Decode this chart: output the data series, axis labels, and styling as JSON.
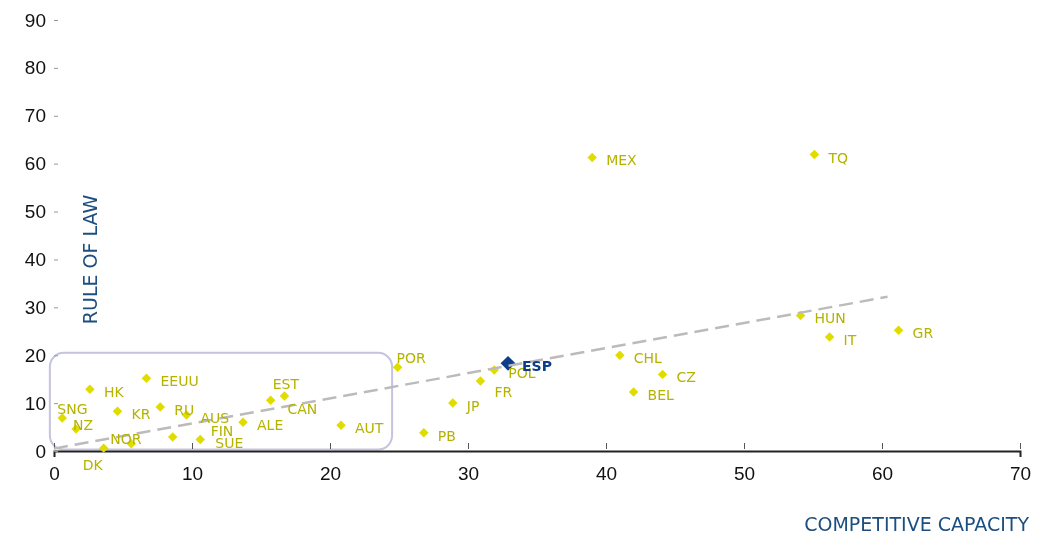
{
  "chart_data": {
    "type": "scatter",
    "xlabel": "COMPETITIVE CAPACITY",
    "ylabel": "RULE OF LAW",
    "xlim": [
      0,
      70
    ],
    "xticks": [
      0,
      10,
      20,
      30,
      40,
      50,
      60,
      70
    ],
    "ylim": [
      0,
      90
    ],
    "yticks": [
      0,
      10,
      20,
      30,
      40,
      50,
      60,
      70,
      80,
      90
    ],
    "grid": false,
    "series": [
      {
        "marker": "diamond",
        "color": "#e0dc00",
        "x": [
          0.6,
          1.6,
          3.6,
          2.6,
          4.6,
          6.7,
          5.6,
          7.7,
          9.6,
          8.6,
          10.6,
          13.7,
          15.7,
          16.7,
          20.8,
          24.9,
          26.8,
          28.9,
          30.9,
          31.9,
          41.0,
          42.0,
          44.1,
          39.0,
          55.1,
          54.1,
          56.2,
          61.2
        ],
        "values": [
          6.9,
          4.6,
          0.6,
          12.9,
          8.3,
          15.2,
          1.5,
          9.2,
          7.5,
          2.9,
          2.4,
          6.0,
          10.6,
          11.5,
          5.4,
          17.5,
          3.8,
          10.0,
          14.6,
          16.9,
          20.0,
          12.3,
          16.0,
          61.3,
          61.9,
          28.3,
          23.8,
          25.2
        ]
      },
      {
        "marker": "diamond",
        "color": "#0c3c8c",
        "x": [
          32.9
        ],
        "values": [
          18.3
        ]
      },
      {
        "type": "line",
        "marker": "none",
        "color": "#bbbbbb",
        "line_style": "dashed",
        "x": [
          0,
          60.4
        ],
        "values": [
          0.5,
          32.2
        ]
      }
    ],
    "annotations": [
      {
        "text": "SNG",
        "x": 0.6,
        "y": 6.9
      },
      {
        "text": "NZ",
        "x": 1.6,
        "y": 4.6
      },
      {
        "text": "DK",
        "x": 3.6,
        "y": 0.6
      },
      {
        "text": "HK",
        "x": 2.6,
        "y": 12.9
      },
      {
        "text": "KR",
        "x": 4.6,
        "y": 8.3
      },
      {
        "text": "EEUU",
        "x": 6.7,
        "y": 15.2
      },
      {
        "text": "NOR",
        "x": 5.6,
        "y": 1.5
      },
      {
        "text": "RU",
        "x": 7.7,
        "y": 9.2
      },
      {
        "text": "AUS",
        "x": 9.6,
        "y": 7.5
      },
      {
        "text": "FIN",
        "x": 8.6,
        "y": 2.9
      },
      {
        "text": "SUE",
        "x": 10.6,
        "y": 2.4
      },
      {
        "text": "ALE",
        "x": 13.7,
        "y": 6.0
      },
      {
        "text": "EST",
        "x": 15.7,
        "y": 10.6
      },
      {
        "text": "CAN",
        "x": 16.7,
        "y": 11.5
      },
      {
        "text": "AUT",
        "x": 20.8,
        "y": 5.4
      },
      {
        "text": "POR",
        "x": 24.9,
        "y": 17.5
      },
      {
        "text": "PB",
        "x": 26.8,
        "y": 3.8
      },
      {
        "text": "JP",
        "x": 28.9,
        "y": 10.0
      },
      {
        "text": "FR",
        "x": 30.9,
        "y": 14.6
      },
      {
        "text": "POL",
        "x": 31.9,
        "y": 16.9
      },
      {
        "text": "CHL",
        "x": 41.0,
        "y": 20.0
      },
      {
        "text": "BEL",
        "x": 42.0,
        "y": 12.3
      },
      {
        "text": "CZ",
        "x": 44.1,
        "y": 16.0
      },
      {
        "text": "MEX",
        "x": 39.0,
        "y": 61.3
      },
      {
        "text": "TQ",
        "x": 55.1,
        "y": 61.9
      },
      {
        "text": "HUN",
        "x": 54.1,
        "y": 28.3
      },
      {
        "text": "IT",
        "x": 56.2,
        "y": 23.8
      },
      {
        "text": "GR",
        "x": 61.2,
        "y": 25.2
      },
      {
        "text": "ESP",
        "x": 32.9,
        "y": 18.3
      }
    ]
  }
}
